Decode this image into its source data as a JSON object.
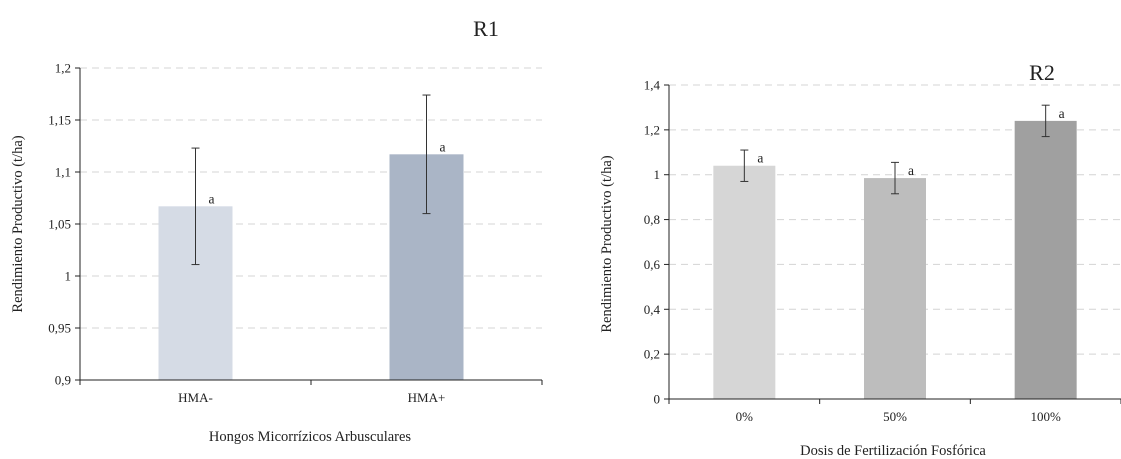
{
  "chart_data": [
    {
      "type": "bar",
      "panel_label": "R1",
      "categories": [
        "HMA-",
        "HMA+"
      ],
      "values": [
        1.067,
        1.117
      ],
      "errors": [
        0.056,
        0.057
      ],
      "significance": [
        "a",
        "a"
      ],
      "colors": [
        "#d5dbe5",
        "#aab5c6"
      ],
      "xlabel": "Hongos Micorrízicos Arbusculares",
      "ylabel": "Rendimiento Productivo (t/ha)",
      "ylim": [
        0.9,
        1.2
      ],
      "yticks": [
        0.9,
        0.95,
        1.0,
        1.05,
        1.1,
        1.15,
        1.2
      ],
      "ytick_labels": [
        "0,9",
        "0,95",
        "1",
        "1,05",
        "1,1",
        "1,15",
        "1,2"
      ],
      "grid": true,
      "legend": "none"
    },
    {
      "type": "bar",
      "panel_label": "R2",
      "categories": [
        "0%",
        "50%",
        "100%"
      ],
      "values": [
        1.04,
        0.985,
        1.24
      ],
      "errors": [
        0.07,
        0.07,
        0.07
      ],
      "significance": [
        "a",
        "a",
        "a"
      ],
      "colors": [
        "#d6d6d6",
        "#bdbdbd",
        "#a0a0a0"
      ],
      "xlabel": "Dosis de Fertilización Fosfórica",
      "ylabel": "Rendimiento Productivo (t/ha)",
      "ylim": [
        0,
        1.4
      ],
      "yticks": [
        0,
        0.2,
        0.4,
        0.6,
        0.8,
        1.0,
        1.2,
        1.4
      ],
      "ytick_labels": [
        "0",
        "0,2",
        "0,4",
        "0,6",
        "0,8",
        "1",
        "1,2",
        "1,4"
      ],
      "grid": true,
      "legend": "none"
    }
  ]
}
